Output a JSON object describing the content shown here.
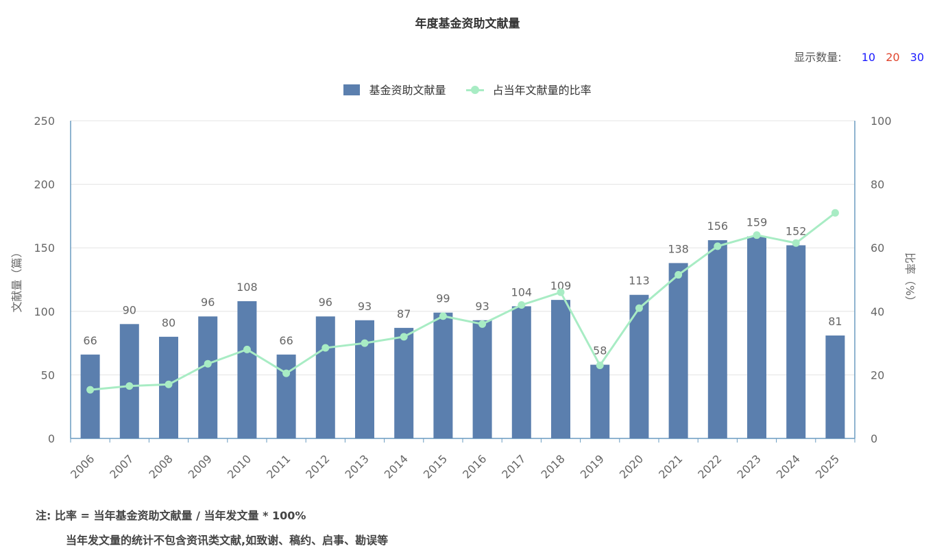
{
  "header": {
    "title": "年度基金资助文献量"
  },
  "show_count": {
    "label": "显示数量:",
    "options": [
      {
        "label": "10",
        "color": "#1a1aff"
      },
      {
        "label": "20",
        "color": "#e0452d"
      },
      {
        "label": "30",
        "color": "#1a1aff"
      }
    ]
  },
  "colors": {
    "bar": "#5b7fae",
    "line": "#a8ecc4",
    "axis": "#6a9bc0",
    "grid": "#e3e3e3",
    "text": "#666666"
  },
  "chart_data": {
    "type": "bar",
    "title": "年度基金资助文献量",
    "categories": [
      "2006",
      "2007",
      "2008",
      "2009",
      "2010",
      "2011",
      "2012",
      "2013",
      "2014",
      "2015",
      "2016",
      "2017",
      "2018",
      "2019",
      "2020",
      "2021",
      "2022",
      "2023",
      "2024",
      "2025"
    ],
    "series": [
      {
        "name": "基金资助文献量",
        "type": "bar",
        "axis": "left",
        "values": [
          66,
          90,
          80,
          96,
          108,
          66,
          96,
          93,
          87,
          99,
          93,
          104,
          109,
          58,
          113,
          138,
          156,
          159,
          152,
          81
        ]
      },
      {
        "name": "占当年文献量的比率",
        "type": "line",
        "axis": "right",
        "values": [
          15.3,
          16.5,
          17.0,
          23.5,
          28.0,
          20.5,
          28.5,
          30.0,
          32.0,
          38.5,
          36.0,
          42.0,
          46.0,
          23.0,
          41.0,
          51.5,
          60.5,
          64.0,
          61.5,
          71.0
        ]
      }
    ],
    "ylabel": "文献量（篇）",
    "ylabel_right": "比率（%）",
    "ylim": [
      0,
      250
    ],
    "ylim_right": [
      0,
      100
    ],
    "yticks": [
      0,
      50,
      100,
      150,
      200,
      250
    ],
    "yticks_right": [
      0,
      20,
      40,
      60,
      80,
      100
    ],
    "grid": true,
    "legend": "top-center"
  },
  "note": {
    "line1": "注:  比率 = 当年基金资助文献量 / 当年发文量 * 100%",
    "line2": "当年发文量的统计不包含资讯类文献,如致谢、稿约、启事、勘误等"
  }
}
